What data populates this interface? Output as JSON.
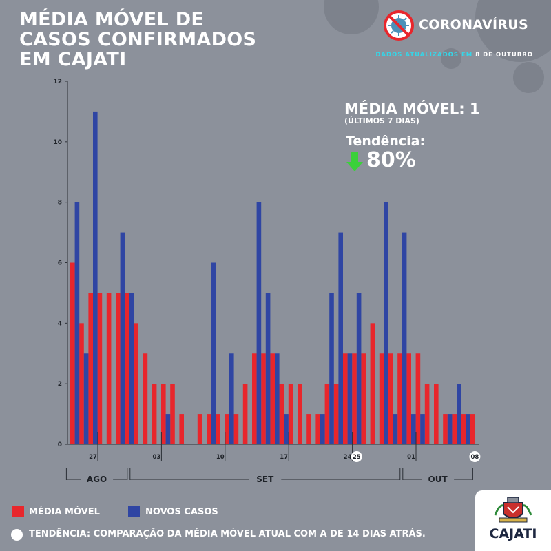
{
  "title": {
    "line1": "MÉDIA MÓVEL DE",
    "line2": "CASOS CONFIRMADOS",
    "line3": "EM CAJATI"
  },
  "brand": {
    "name": "CORONAVÍRUS",
    "icon": "no-virus-icon"
  },
  "updated": {
    "label": "DADOS ATUALIZADOS EM",
    "date": "8 DE OUTUBRO"
  },
  "summary": {
    "media_label": "MÉDIA MÓVEL: 1",
    "period": "(ÚLTIMOS 7 DIAS)",
    "trend_label": "Tendência:",
    "trend_value": "80%",
    "trend_icon": "arrow-down-icon"
  },
  "legend": {
    "media": "MÉDIA MÓVEL",
    "novos": "NOVOS CASOS",
    "tendencia": "TENDÊNCIA: COMPARAÇÃO DA MÉDIA MÓVEL ATUAL COM A DE 14 DIAS ATRÁS."
  },
  "logo": {
    "name": "CAJATI"
  },
  "colors": {
    "media": "#e8262c",
    "novos": "#2f45a3",
    "background": "#8c919b",
    "accent": "#35d6e8",
    "trend_down": "#3ad13a"
  },
  "chart_data": {
    "type": "bar",
    "title": "MÉDIA MÓVEL DE CASOS CONFIRMADOS EM CAJATI",
    "xlabel": "",
    "ylabel": "",
    "ylim": [
      0,
      12
    ],
    "yticks": [
      "0",
      "2",
      "4",
      "6",
      "8",
      "10",
      "12"
    ],
    "x_tick_labels": [
      {
        "day": 0,
        "label": "27"
      },
      {
        "day": 7,
        "label": "03"
      },
      {
        "day": 14,
        "label": "10"
      },
      {
        "day": 21,
        "label": "17"
      },
      {
        "day": 28,
        "label": "24"
      },
      {
        "day": 29,
        "label": "25",
        "circled": true
      },
      {
        "day": 35,
        "label": "01"
      },
      {
        "day": 42,
        "label": "08",
        "circled": true
      }
    ],
    "months": [
      {
        "label": "AGO",
        "start": -2.5,
        "end": 4.5
      },
      {
        "label": "SET",
        "start": 4.5,
        "end": 34.5
      },
      {
        "label": "OUT",
        "start": 34.5,
        "end": 42.5
      }
    ],
    "first_day": -2,
    "series": [
      {
        "name": "MÉDIA MÓVEL",
        "values": [
          6,
          4,
          5,
          5,
          5,
          5,
          5,
          4,
          3,
          2,
          2,
          2,
          1,
          0,
          1,
          1,
          1,
          1,
          1,
          2,
          3,
          3,
          3,
          2,
          2,
          2,
          1,
          1,
          2,
          2,
          3,
          3,
          3,
          4,
          3,
          3,
          3,
          3,
          3,
          2,
          2,
          1,
          1,
          1,
          1
        ]
      },
      {
        "name": "NOVOS CASOS",
        "values": [
          8,
          3,
          11,
          0,
          0,
          7,
          5,
          0,
          0,
          0,
          1,
          0,
          0,
          0,
          0,
          6,
          0,
          3,
          0,
          0,
          8,
          5,
          3,
          1,
          0,
          0,
          0,
          1,
          5,
          7,
          3,
          5,
          0,
          0,
          8,
          1,
          7,
          1,
          1,
          0,
          0,
          1,
          2,
          1,
          0
        ]
      }
    ]
  }
}
